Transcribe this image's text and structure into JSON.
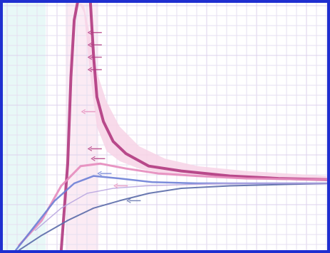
{
  "colors": {
    "frame": "#1f2fd0",
    "grid": "#e6dff0",
    "grid_major": "#dcd2ec",
    "left_band": "#d9f3f1",
    "pink_band": "#f7d3e6",
    "magenta": "#b0387f",
    "pink": "#e58bbc",
    "blue": "#6d7fd6",
    "slate": "#5a6aa8",
    "lavender": "#b9a6e0"
  },
  "chart_data": {
    "type": "line",
    "title": "",
    "xlabel": "",
    "ylabel": "",
    "grid": true,
    "legend": "none",
    "xlim": [
      0,
      1
    ],
    "ylim": [
      0,
      1
    ],
    "series": [
      {
        "key": "peak_fill",
        "kind": "area",
        "color": "pink_band",
        "x": [
          0.19,
          0.21,
          0.22,
          0.235,
          0.25,
          0.27,
          0.29,
          0.32,
          0.36,
          0.42,
          0.5,
          0.6,
          0.75,
          1.0,
          1.0,
          0.75,
          0.6,
          0.5,
          0.42,
          0.36,
          0.32,
          0.29,
          0.27,
          0.25,
          0.235,
          0.22,
          0.21,
          0.19
        ],
        "y": [
          0.0,
          0.55,
          0.97,
          1.0,
          0.96,
          0.7,
          0.5,
          0.4,
          0.36,
          0.33,
          0.31,
          0.3,
          0.29,
          0.28,
          0.3,
          0.32,
          0.34,
          0.37,
          0.42,
          0.5,
          0.6,
          0.72,
          0.86,
          0.99,
          1.0,
          0.98,
          0.6,
          0.0
        ]
      },
      {
        "key": "dark_peak",
        "kind": "line",
        "color": "magenta",
        "width": 4,
        "x": [
          0.18,
          0.2,
          0.21,
          0.22,
          0.23
        ],
        "y": [
          0.0,
          0.35,
          0.7,
          0.93,
          1.0
        ]
      },
      {
        "key": "upper_decay",
        "kind": "line",
        "color": "magenta",
        "width": 4,
        "x": [
          0.27,
          0.28,
          0.29,
          0.31,
          0.34,
          0.38,
          0.45,
          0.55,
          0.7,
          0.85,
          1.0
        ],
        "y": [
          1.0,
          0.78,
          0.62,
          0.52,
          0.44,
          0.39,
          0.34,
          0.32,
          0.3,
          0.29,
          0.285
        ]
      },
      {
        "key": "mid_curve",
        "kind": "line",
        "color": "pink",
        "width": 3,
        "x": [
          0.05,
          0.12,
          0.18,
          0.24,
          0.3,
          0.38,
          0.48,
          0.6,
          0.75,
          1.0
        ],
        "y": [
          0.02,
          0.12,
          0.26,
          0.34,
          0.35,
          0.33,
          0.31,
          0.3,
          0.29,
          0.285
        ]
      },
      {
        "key": "blue_curve",
        "kind": "line",
        "color": "blue",
        "width": 2.5,
        "x": [
          0.04,
          0.1,
          0.16,
          0.22,
          0.28,
          0.36,
          0.46,
          0.6,
          0.8,
          1.0
        ],
        "y": [
          0.0,
          0.1,
          0.2,
          0.27,
          0.3,
          0.29,
          0.275,
          0.27,
          0.27,
          0.27
        ]
      },
      {
        "key": "lower_curve",
        "kind": "line",
        "color": "slate",
        "width": 2,
        "x": [
          0.05,
          0.12,
          0.2,
          0.28,
          0.36,
          0.45,
          0.55,
          0.7,
          0.85,
          1.0
        ],
        "y": [
          0.0,
          0.06,
          0.12,
          0.17,
          0.2,
          0.23,
          0.25,
          0.26,
          0.265,
          0.27
        ]
      },
      {
        "key": "faint_curve",
        "kind": "line",
        "color": "lavender",
        "width": 1.5,
        "x": [
          0.1,
          0.18,
          0.26,
          0.34,
          0.44,
          0.56,
          0.7,
          0.85,
          1.0
        ],
        "y": [
          0.08,
          0.17,
          0.23,
          0.25,
          0.26,
          0.265,
          0.27,
          0.27,
          0.27
        ]
      }
    ],
    "markers": [
      {
        "x": 0.27,
        "y": 0.88,
        "color": "magenta"
      },
      {
        "x": 0.27,
        "y": 0.83,
        "color": "magenta"
      },
      {
        "x": 0.27,
        "y": 0.78,
        "color": "magenta"
      },
      {
        "x": 0.27,
        "y": 0.73,
        "color": "magenta"
      },
      {
        "x": 0.25,
        "y": 0.56,
        "color": "pink"
      },
      {
        "x": 0.27,
        "y": 0.41,
        "color": "magenta"
      },
      {
        "x": 0.28,
        "y": 0.37,
        "color": "magenta"
      },
      {
        "x": 0.3,
        "y": 0.31,
        "color": "blue"
      },
      {
        "x": 0.35,
        "y": 0.26,
        "color": "pink"
      },
      {
        "x": 0.39,
        "y": 0.2,
        "color": "slate"
      }
    ]
  }
}
